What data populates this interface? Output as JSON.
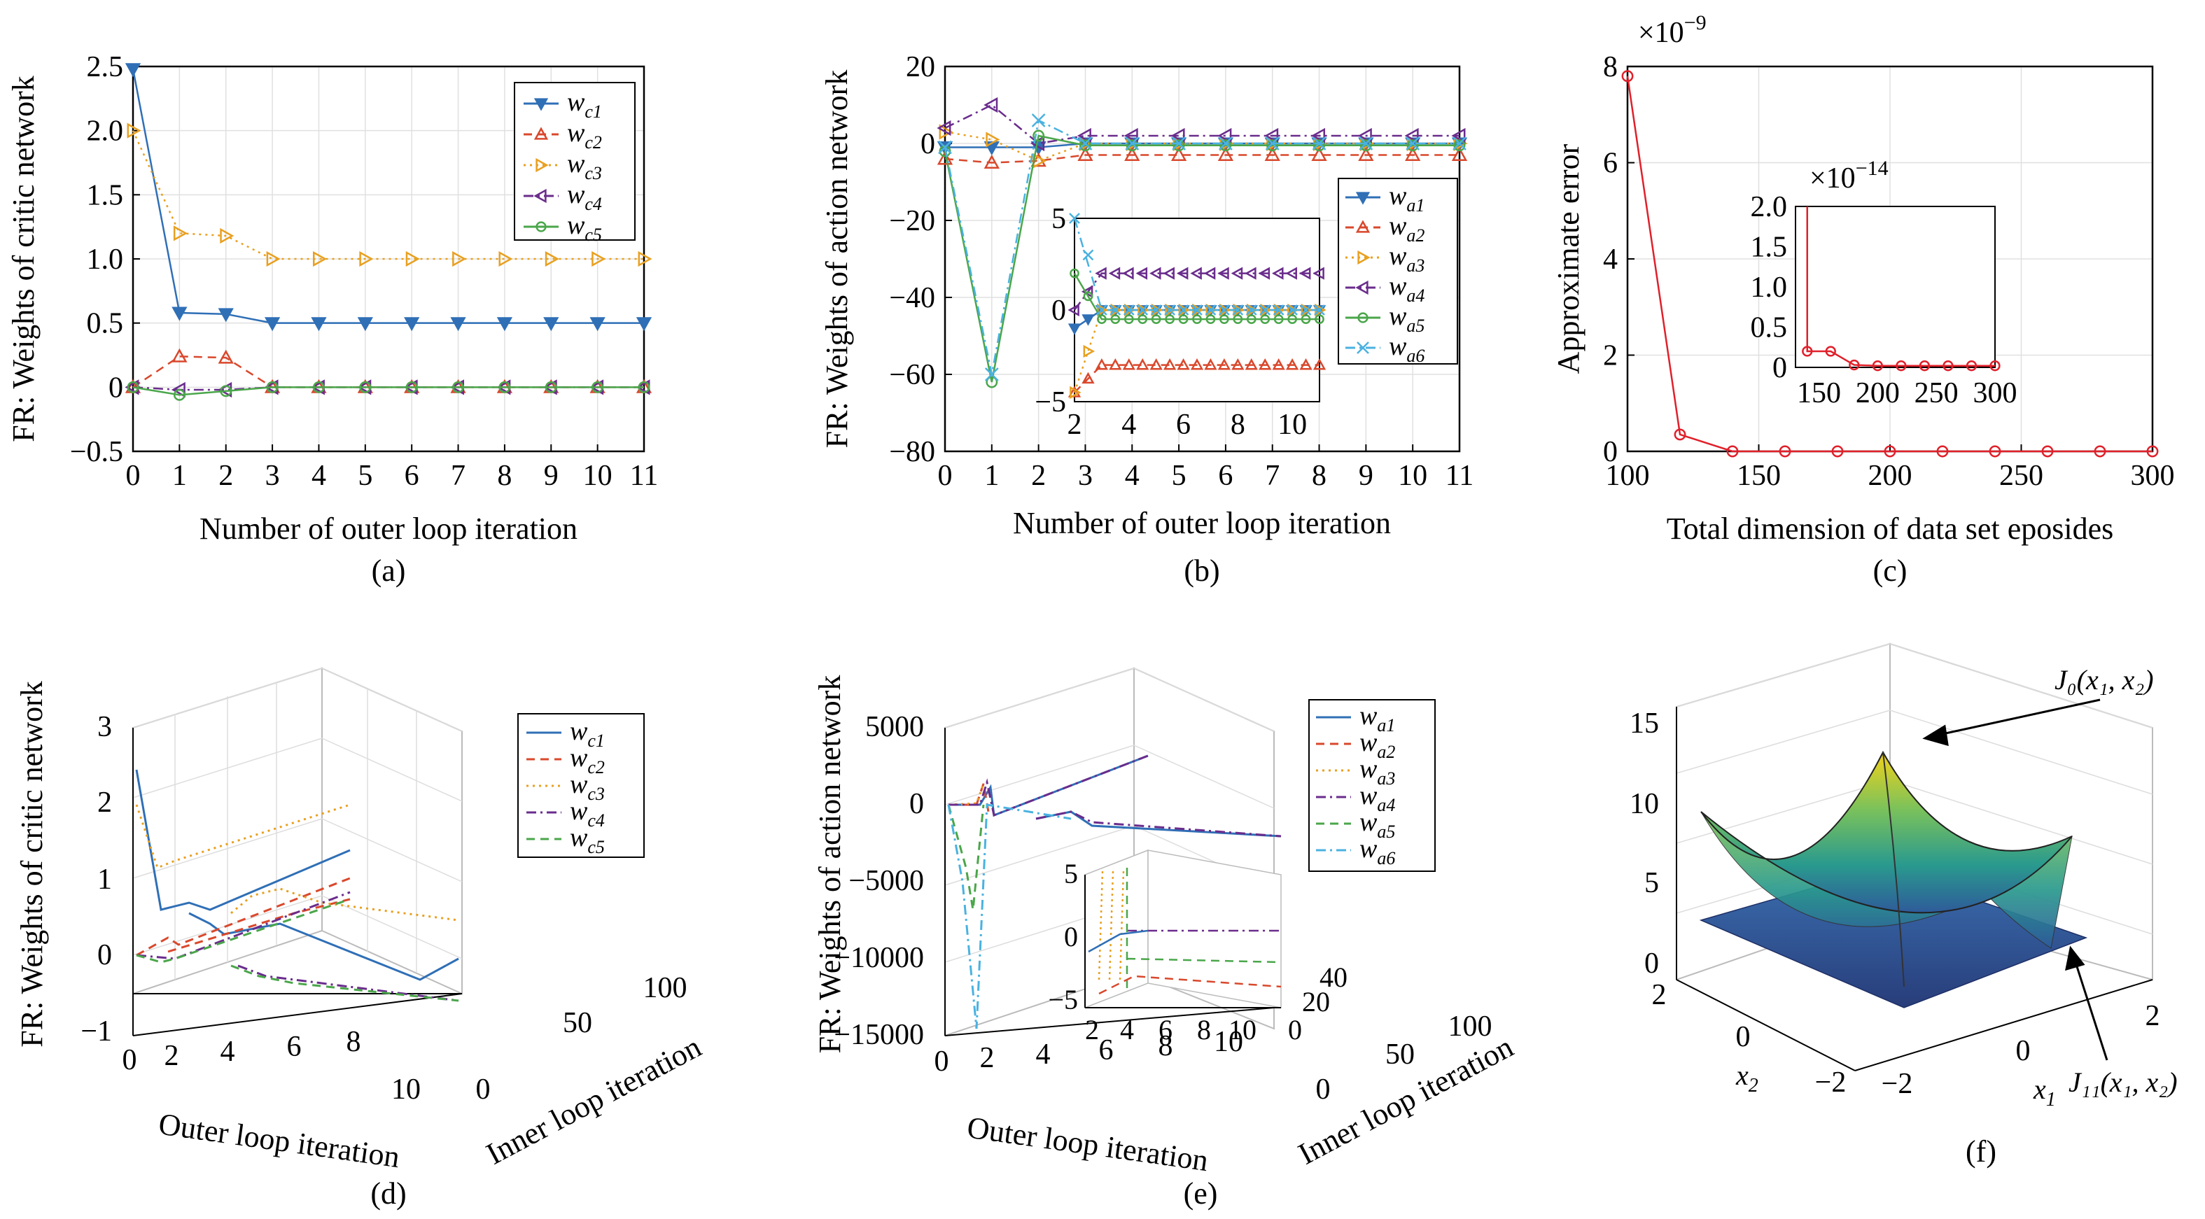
{
  "figure": {
    "panel_labels": [
      "(a)",
      "(b)",
      "(c)",
      "(d)",
      "(e)",
      "(f)"
    ]
  },
  "chart_data": [
    {
      "id": "a",
      "type": "line",
      "xlabel": "Number of outer loop iteration",
      "ylabel": "FR: Weights of critic network",
      "xlim": [
        0,
        11
      ],
      "ylim": [
        -0.5,
        2.5
      ],
      "xticks": [
        "0",
        "1",
        "2",
        "3",
        "4",
        "5",
        "6",
        "7",
        "8",
        "9",
        "10",
        "11"
      ],
      "yticks": [
        "2.5",
        "2.0",
        "1.5",
        "1.0",
        "0.5",
        "0",
        "−0.5"
      ],
      "ytick_values": [
        2.5,
        2.0,
        1.5,
        1.0,
        0.5,
        0,
        -0.5
      ],
      "grid": true,
      "legend_position": "top-right",
      "x": [
        0,
        1,
        2,
        3,
        4,
        5,
        6,
        7,
        8,
        9,
        10,
        11
      ],
      "series": [
        {
          "name": "w",
          "sub": "c1",
          "color": "#2f6fb6",
          "marker": "tri-down",
          "dash": "",
          "values": [
            2.48,
            0.58,
            0.57,
            0.5,
            0.5,
            0.5,
            0.5,
            0.5,
            0.5,
            0.5,
            0.5,
            0.5
          ]
        },
        {
          "name": "w",
          "sub": "c2",
          "color": "#d9482c",
          "marker": "tri-up",
          "dash": "12,8",
          "values": [
            0.0,
            0.24,
            0.23,
            0.0,
            0.0,
            0.0,
            0.0,
            0.0,
            0.0,
            0.0,
            0.0,
            0.0
          ]
        },
        {
          "name": "w",
          "sub": "c3",
          "color": "#e8a020",
          "marker": "tri-right",
          "dash": "3,6",
          "values": [
            2.0,
            1.2,
            1.18,
            1.0,
            1.0,
            1.0,
            1.0,
            1.0,
            1.0,
            1.0,
            1.0,
            1.0
          ]
        },
        {
          "name": "w",
          "sub": "c4",
          "color": "#6a2c8c",
          "marker": "tri-left",
          "dash": "14,6,3,6",
          "values": [
            0.0,
            -0.02,
            -0.02,
            0.0,
            0.0,
            0.0,
            0.0,
            0.0,
            0.0,
            0.0,
            0.0,
            0.0
          ]
        },
        {
          "name": "w",
          "sub": "c5",
          "color": "#4aa64a",
          "marker": "circle",
          "dash": "",
          "values": [
            0.0,
            -0.06,
            -0.03,
            0.0,
            0.0,
            0.0,
            0.0,
            0.0,
            0.0,
            0.0,
            0.0,
            0.0
          ]
        }
      ]
    },
    {
      "id": "b",
      "type": "line",
      "xlabel": "Number of outer loop iteration",
      "ylabel": "FR: Weights of action network",
      "xlim": [
        0,
        11
      ],
      "ylim": [
        -80,
        20
      ],
      "xticks": [
        "0",
        "1",
        "2",
        "3",
        "4",
        "5",
        "6",
        "7",
        "8",
        "9",
        "10",
        "11"
      ],
      "yticks": [
        "20",
        "0",
        "−20",
        "−40",
        "−60",
        "−80"
      ],
      "ytick_values": [
        20,
        0,
        -20,
        -40,
        -60,
        -80
      ],
      "grid": true,
      "legend_position": "right",
      "x": [
        0,
        1,
        2,
        3,
        4,
        5,
        6,
        7,
        8,
        9,
        10,
        11
      ],
      "series": [
        {
          "name": "w",
          "sub": "a1",
          "color": "#2f6fb6",
          "marker": "tri-down",
          "dash": "",
          "values": [
            -1,
            -1,
            -1,
            0,
            0,
            0,
            0,
            0,
            0,
            0,
            0,
            0
          ]
        },
        {
          "name": "w",
          "sub": "a2",
          "color": "#d9482c",
          "marker": "tri-up",
          "dash": "12,8",
          "values": [
            -4,
            -5,
            -4.5,
            -3,
            -3,
            -3,
            -3,
            -3,
            -3,
            -3,
            -3,
            -3
          ]
        },
        {
          "name": "w",
          "sub": "a3",
          "color": "#e8a020",
          "marker": "tri-right",
          "dash": "3,6",
          "values": [
            3,
            1,
            -4.5,
            0,
            0,
            0,
            0,
            0,
            0,
            0,
            0,
            0
          ]
        },
        {
          "name": "w",
          "sub": "a4",
          "color": "#6a2c8c",
          "marker": "tri-left",
          "dash": "14,6,3,6",
          "values": [
            4,
            10,
            0,
            2,
            2,
            2,
            2,
            2,
            2,
            2,
            2,
            2
          ]
        },
        {
          "name": "w",
          "sub": "a5",
          "color": "#4aa64a",
          "marker": "circle",
          "dash": "",
          "values": [
            -2,
            -62,
            2,
            -0.5,
            -0.5,
            -0.5,
            -0.5,
            -0.5,
            -0.5,
            -0.5,
            -0.5,
            -0.5
          ]
        },
        {
          "name": "w",
          "sub": "a6",
          "color": "#4ab2e0",
          "marker": "x",
          "dash": "14,6,3,6",
          "values": [
            -1,
            -60,
            6,
            0,
            0,
            0,
            0,
            0,
            0,
            0,
            0,
            0
          ]
        }
      ],
      "inset": {
        "xlim": [
          2,
          11
        ],
        "ylim": [
          -5,
          5
        ],
        "xticks": [
          "2",
          "4",
          "6",
          "8",
          "10"
        ],
        "xtick_values": [
          2,
          4,
          6,
          8,
          10
        ],
        "yticks": [
          "5",
          "0",
          "−5"
        ],
        "ytick_values": [
          5,
          0,
          -5
        ]
      }
    },
    {
      "id": "c",
      "type": "line",
      "xlabel": "Total dimension of data set eposides",
      "ylabel": "Approximate error",
      "exponent_label": "×10",
      "exponent": "−9",
      "xlim": [
        100,
        300
      ],
      "ylim": [
        0,
        8
      ],
      "xticks": [
        "100",
        "150",
        "200",
        "250",
        "300"
      ],
      "xtick_values": [
        100,
        150,
        200,
        250,
        300
      ],
      "yticks": [
        "8",
        "6",
        "4",
        "2",
        "0"
      ],
      "ytick_values": [
        8,
        6,
        4,
        2,
        0
      ],
      "grid": true,
      "series": [
        {
          "color": "#e0202a",
          "marker": "circle",
          "x": [
            100,
            120,
            140,
            160,
            180,
            200,
            220,
            240,
            260,
            280,
            300
          ],
          "values": [
            7.8,
            0.35,
            0.0,
            0.0,
            0.0,
            0.0,
            0.0,
            0.0,
            0.0,
            0.0,
            0.0
          ]
        }
      ],
      "inset": {
        "exponent_label": "×10",
        "exponent": "−14",
        "xlim": [
          130,
          300
        ],
        "ylim": [
          0,
          2.0
        ],
        "xticks": [
          "150",
          "200",
          "250",
          "300"
        ],
        "xtick_values": [
          150,
          200,
          250,
          300
        ],
        "yticks": [
          "2.0",
          "1.5",
          "1.0",
          "0.5",
          "0"
        ],
        "ytick_values": [
          2.0,
          1.5,
          1.0,
          0.5,
          0
        ],
        "x": [
          140,
          160,
          180,
          200,
          220,
          240,
          260,
          280,
          300
        ],
        "values": [
          0.2,
          0.2,
          0.03,
          0.02,
          0.02,
          0.02,
          0.02,
          0.02,
          0.02
        ]
      }
    },
    {
      "id": "d",
      "type": "line3d",
      "xlabel": "Outer loop iteration",
      "ylabel": "Inner loop iteration",
      "zlabel": "FR: Weights of critic network",
      "xticks": [
        "0",
        "2",
        "4",
        "6",
        "8",
        "10"
      ],
      "yticks": [
        "0",
        "50",
        "100"
      ],
      "zticks": [
        "3",
        "2",
        "1",
        "0",
        "−1"
      ],
      "legend": [
        {
          "name": "w",
          "sub": "c1",
          "color": "#2f6fb6",
          "dash": ""
        },
        {
          "name": "w",
          "sub": "c2",
          "color": "#d9482c",
          "dash": "12,8"
        },
        {
          "name": "w",
          "sub": "c3",
          "color": "#e8a020",
          "dash": "3,6"
        },
        {
          "name": "w",
          "sub": "c4",
          "color": "#6a2c8c",
          "dash": "14,6,3,6"
        },
        {
          "name": "w",
          "sub": "c5",
          "color": "#4aa64a",
          "dash": "12,8"
        }
      ]
    },
    {
      "id": "e",
      "type": "line3d",
      "xlabel": "Outer loop iteration",
      "ylabel": "Inner loop iteration",
      "zlabel": "FR: Weights of action network",
      "xticks": [
        "0",
        "2",
        "4",
        "6",
        "8",
        "10"
      ],
      "yticks": [
        "0",
        "50",
        "100"
      ],
      "zticks": [
        "5000",
        "0",
        "−5000",
        "−10000",
        "−15000"
      ],
      "inset_xticks": [
        "2",
        "4",
        "6",
        "8",
        "10"
      ],
      "inset_yticks": [
        "0",
        "20",
        "40"
      ],
      "inset_zticks": [
        "5",
        "0",
        "−5"
      ],
      "legend": [
        {
          "name": "w",
          "sub": "a1",
          "color": "#2f6fb6",
          "dash": ""
        },
        {
          "name": "w",
          "sub": "a2",
          "color": "#d9482c",
          "dash": "12,8"
        },
        {
          "name": "w",
          "sub": "a3",
          "color": "#e8a020",
          "dash": "3,6"
        },
        {
          "name": "w",
          "sub": "a4",
          "color": "#6a2c8c",
          "dash": "14,6,3,6"
        },
        {
          "name": "w",
          "sub": "a5",
          "color": "#4aa64a",
          "dash": "12,8"
        },
        {
          "name": "w",
          "sub": "a6",
          "color": "#4ab2e0",
          "dash": "14,6,3,6"
        }
      ]
    },
    {
      "id": "f",
      "type": "surface",
      "xlabel": "x",
      "xlabel_sub": "1",
      "ylabel": "x",
      "ylabel_sub": "2",
      "zticks": [
        "15",
        "10",
        "5",
        "0"
      ],
      "xticks": [
        "−2",
        "0",
        "2"
      ],
      "yticks": [
        "2",
        "0",
        "−2"
      ],
      "annotations": [
        {
          "text": "J₀(x₁, x₂)"
        },
        {
          "text": "J₁₁(x₁, x₂)"
        }
      ]
    }
  ]
}
